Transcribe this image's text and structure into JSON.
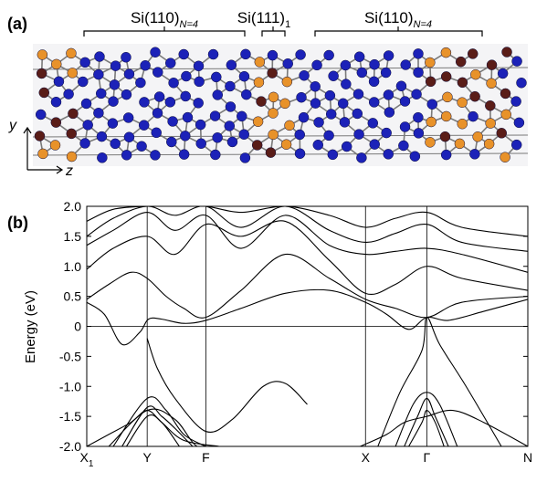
{
  "panel_a": {
    "label": "(a)",
    "regions": [
      {
        "base": "Si(110)",
        "sub": "N=4"
      },
      {
        "base": "Si(111)",
        "sub": "1"
      },
      {
        "base": "Si(110)",
        "sub": "N=4"
      }
    ],
    "axis_y": "y",
    "axis_z": "z",
    "colors": {
      "si_bulk": "#1c22b8",
      "interface_orange": "#e8922a",
      "interface_dark": "#5a1d18",
      "bonds": "#7a7a7a"
    }
  },
  "chart_data": {
    "type": "line",
    "panel_label": "(b)",
    "ylabel": "Energy (eV)",
    "ylim": [
      -2.0,
      2.0
    ],
    "yticks": [
      "2.0",
      "1.5",
      "1.0",
      "0.5",
      "0",
      "-0.5",
      "-1.0",
      "-1.5",
      "-2.0"
    ],
    "xticks": [
      {
        "base": "X",
        "sub": "1",
        "pos": 0.0
      },
      {
        "base": "Y",
        "sub": "",
        "pos": 0.137
      },
      {
        "base": "F",
        "sub": "",
        "pos": 0.27
      },
      {
        "base": "X",
        "sub": "",
        "pos": 0.632
      },
      {
        "base": "Γ",
        "sub": "",
        "pos": 0.771
      },
      {
        "base": "N",
        "sub": "",
        "pos": 1.0
      }
    ],
    "grid_vertical": true,
    "zero_line": true,
    "series": [
      {
        "x": [
          0,
          0.04,
          0.08,
          0.12,
          0.14,
          0.17,
          0.22,
          0.27,
          0.35,
          0.45,
          0.55,
          0.632,
          0.68,
          0.73,
          0.771,
          0.82,
          0.9,
          1.0
        ],
        "y": [
          0.4,
          0.2,
          -0.3,
          -0.1,
          0.12,
          0.12,
          0.05,
          0.1,
          0.3,
          0.55,
          0.6,
          0.4,
          0.2,
          -0.05,
          0.15,
          0.1,
          0.25,
          0.45
        ]
      },
      {
        "x": [
          0,
          0.05,
          0.1,
          0.137,
          0.18,
          0.22,
          0.27,
          0.35,
          0.45,
          0.55,
          0.632,
          0.7,
          0.771,
          0.85,
          1.0
        ],
        "y": [
          0.45,
          0.7,
          0.9,
          0.8,
          0.5,
          0.3,
          0.15,
          0.6,
          1.2,
          0.8,
          0.45,
          0.3,
          0.15,
          0.4,
          0.5
        ]
      },
      {
        "x": [
          0,
          0.06,
          0.137,
          0.2,
          0.27,
          0.35,
          0.45,
          0.55,
          0.632,
          0.7,
          0.771,
          0.85,
          1.0
        ],
        "y": [
          0.95,
          1.3,
          1.5,
          1.2,
          1.7,
          1.5,
          1.75,
          1.1,
          0.55,
          0.7,
          1.0,
          0.8,
          0.6
        ]
      },
      {
        "x": [
          0,
          0.06,
          0.137,
          0.2,
          0.27,
          0.35,
          0.45,
          0.55,
          0.632,
          0.7,
          0.771,
          0.85,
          1.0
        ],
        "y": [
          1.35,
          1.6,
          1.9,
          1.6,
          1.85,
          1.3,
          1.85,
          1.35,
          1.2,
          1.25,
          1.3,
          1.2,
          0.9
        ]
      },
      {
        "x": [
          0,
          0.06,
          0.137,
          0.2,
          0.27,
          0.35,
          0.45,
          0.55,
          0.632,
          0.7,
          0.771,
          0.85,
          1.0
        ],
        "y": [
          1.5,
          1.8,
          2.0,
          1.85,
          2.0,
          1.65,
          2.0,
          1.6,
          1.4,
          1.55,
          1.7,
          1.4,
          1.25
        ]
      },
      {
        "x": [
          0,
          0.06,
          0.137,
          0.2,
          0.27,
          0.35,
          0.45,
          0.55,
          0.632,
          0.7,
          0.771,
          0.85,
          1.0
        ],
        "y": [
          1.75,
          1.95,
          2.0,
          2.0,
          2.0,
          1.9,
          2.0,
          1.85,
          1.65,
          1.8,
          1.9,
          1.65,
          1.5
        ]
      },
      {
        "x": [
          0.05,
          0.137,
          0.2,
          0.25,
          0.3,
          0.35
        ],
        "y": [
          -2.0,
          -1.4,
          -1.55,
          -2.0,
          -2.0,
          -2.0
        ]
      },
      {
        "x": [
          0.137,
          0.16,
          0.2,
          0.27,
          0.33,
          0.4,
          0.45,
          0.5
        ],
        "y": [
          -0.2,
          -0.7,
          -1.2,
          -1.75,
          -1.55,
          -1.0,
          -0.95,
          -1.3
        ]
      },
      {
        "x": [
          0.06,
          0.137,
          0.18,
          0.22,
          0.27
        ],
        "y": [
          -2.0,
          -1.2,
          -1.4,
          -1.8,
          -2.0
        ]
      },
      {
        "x": [
          0.08,
          0.137,
          0.17,
          0.2,
          0.24
        ],
        "y": [
          -2.0,
          -1.35,
          -1.5,
          -1.7,
          -2.0
        ]
      },
      {
        "x": [
          0.09,
          0.137,
          0.17,
          0.21
        ],
        "y": [
          -2.0,
          -1.5,
          -1.6,
          -2.0
        ]
      },
      {
        "x": [
          0.7,
          0.74,
          0.771,
          0.8,
          0.84
        ],
        "y": [
          -2.0,
          -1.3,
          -1.1,
          -1.3,
          -2.0
        ]
      },
      {
        "x": [
          0.72,
          0.75,
          0.771,
          0.79,
          0.82
        ],
        "y": [
          -2.0,
          -1.5,
          -1.2,
          -1.5,
          -2.0
        ]
      },
      {
        "x": [
          0.73,
          0.76,
          0.771,
          0.79,
          0.81
        ],
        "y": [
          -2.0,
          -1.6,
          -1.4,
          -1.6,
          -2.0
        ]
      },
      {
        "x": [
          0.62,
          0.68,
          0.72,
          0.771,
          0.83,
          0.9,
          1.0
        ],
        "y": [
          -2.0,
          -1.8,
          -1.6,
          -1.5,
          -1.4,
          -1.6,
          -2.0
        ]
      },
      {
        "x": [
          0.66,
          0.71,
          0.76,
          0.771,
          0.8,
          0.86,
          0.94
        ],
        "y": [
          -2.0,
          -1.1,
          -0.4,
          0.15,
          -0.3,
          -1.0,
          -2.0
        ]
      },
      {
        "x": [
          0.0,
          0.05,
          0.1,
          0.137,
          0.17,
          0.22,
          0.3
        ],
        "y": [
          -2.0,
          -1.8,
          -1.6,
          -1.4,
          -1.6,
          -1.9,
          -2.0
        ]
      }
    ]
  }
}
